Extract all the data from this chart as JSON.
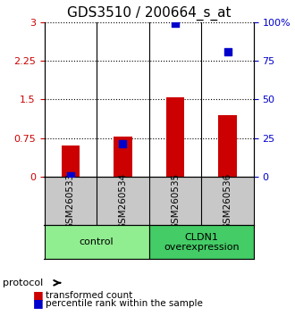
{
  "title": "GDS3510 / 200664_s_at",
  "samples": [
    "GSM260533",
    "GSM260534",
    "GSM260535",
    "GSM260536"
  ],
  "red_values": [
    0.6,
    0.78,
    1.55,
    1.2
  ],
  "blue_pct": [
    0.67,
    21.7,
    99.5,
    80.8
  ],
  "ylim_left": [
    0,
    3
  ],
  "ylim_right": [
    0,
    100
  ],
  "yticks_left": [
    0,
    0.75,
    1.5,
    2.25,
    3
  ],
  "yticks_right": [
    0,
    25,
    50,
    75,
    100
  ],
  "groups": [
    {
      "label": "control",
      "span": [
        0,
        2
      ],
      "color": "#90EE90"
    },
    {
      "label": "CLDN1\noverexpression",
      "span": [
        2,
        4
      ],
      "color": "#44CC66"
    }
  ],
  "protocol_label": "protocol",
  "legend_red": "transformed count",
  "legend_blue": "percentile rank within the sample",
  "bar_color": "#CC0000",
  "dot_color": "#0000CC",
  "bar_width": 0.35,
  "dot_size": 30,
  "background_color": "#ffffff",
  "plot_bg": "#ffffff",
  "tick_label_color_left": "#CC0000",
  "tick_label_color_right": "#0000CC",
  "grid_color": "#000000",
  "sample_bg": "#C8C8C8",
  "title_fontsize": 11,
  "axis_fontsize": 8,
  "legend_fontsize": 7.5,
  "group_fontsize": 8
}
